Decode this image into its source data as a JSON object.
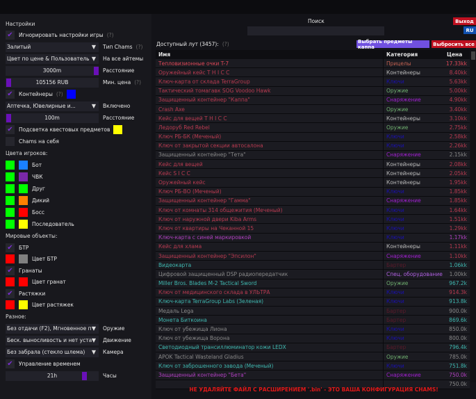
{
  "settings": {
    "title": "Настройки",
    "ignore_game_settings": "Игнорировать настройки игры",
    "help": "(?)",
    "chams_type_value": "Залитый",
    "chams_type_label": "Тип Chams",
    "all_items_value": "Цвет по цене & Пользователь",
    "all_items_label": "На все айтемы",
    "distance_value": "3000m",
    "distance_label": "Расстояние",
    "min_price_value": "105156 RUB",
    "min_price_label": "Мин. цена",
    "containers_label": "Контейнеры",
    "containers_color": "#0000ff",
    "enabled_value": "Аптечка, Ювелирные и...",
    "enabled_label": "Включено",
    "distance2_value": "100m",
    "distance2_label": "Расстояние",
    "quest_highlight_label": "Подсветка квестовых предметов",
    "quest_color": "#ffff00",
    "self_chams_label": "Chams на себя",
    "player_colors_title": "Цвета игроков:",
    "player_colors": [
      {
        "label": "Бот",
        "c1": "#00ff00",
        "c2": "#1a80ff"
      },
      {
        "label": "ЧВК",
        "c1": "#00ff00",
        "c2": "#7a28a8"
      },
      {
        "label": "Друг",
        "c1": "#00ff00",
        "c2": "#00ff00"
      },
      {
        "label": "Дикий",
        "c1": "#00ff00",
        "c2": "#ff8000"
      },
      {
        "label": "Босс",
        "c1": "#00ff00",
        "c2": "#ff0000"
      },
      {
        "label": "Последователь",
        "c1": "#00ff00",
        "c2": "#ffff00"
      }
    ],
    "world_title": "Мировые объекты:",
    "btr_label": "БТР",
    "btr_color_label": "Цвет БТР",
    "btr_c1": "#ff0000",
    "btr_c2": "#808080",
    "grenades_label": "Гранаты",
    "grenade_color_label": "Цвет гранат",
    "gr_c1": "#ff0000",
    "gr_c2": "#ff0000",
    "tripwires_label": "Растяжки",
    "tripwire_color_label": "Цвет растяжек",
    "tw_c1": "#ff0000",
    "tw_c2": "#ffff00",
    "misc_title": "Разное:",
    "weapon_value": "Без отдачи (F2), Мгновенное п",
    "weapon_label": "Оружие",
    "movement_value": "Беск. выносливость и нет уста",
    "movement_label": "Движение",
    "camera_value": "Без забрала (стекло шлема)",
    "camera_label": "Камера",
    "time_control_label": "Управление временем",
    "hours_value": "21h",
    "hours_label": "Часы"
  },
  "top": {
    "search_label": "Поиск",
    "search_value": "",
    "exit": "Выход",
    "lang": "RU",
    "loot_title": "Доступный лут (3457):",
    "help": "(?)",
    "select_kappa": "Выбрать предметы каппа",
    "drop_all": "Выбросить все"
  },
  "table": {
    "headers": [
      "Имя",
      "Категория",
      "Цена"
    ],
    "rows": [
      [
        "Тепловизионные очки T-7",
        "Прицелы",
        "17.33kk",
        "#e04858",
        "#c06050",
        "#e04858"
      ],
      [
        "Оружейный кейс T H I C C",
        "Контейнеры",
        "8.40kk",
        "#b83a50",
        "#bbbbbb",
        "#b83a50"
      ],
      [
        "Ключ-карта от склада TerraGroup",
        "Ключи",
        "5.63kk",
        "#b83a50",
        "#1a10b0",
        "#b83a50"
      ],
      [
        "Тактический томагавк SOG Voodoo Hawk",
        "Оружие",
        "5.00kk",
        "#b83a50",
        "#70b070",
        "#b83a50"
      ],
      [
        "Защищенный контейнер \"Каппа\"",
        "Снаряжение",
        "4.90kk",
        "#b83a50",
        "#a020d0",
        "#b83a50"
      ],
      [
        "Crash Axe",
        "Оружие",
        "3.40kk",
        "#b83a50",
        "#70b070",
        "#b83a50"
      ],
      [
        "Кейс для вещей T H I C C",
        "Контейнеры",
        "3.10kk",
        "#b83a50",
        "#bbbbbb",
        "#b83a50"
      ],
      [
        "Ледоруб Red Rebel",
        "Оружие",
        "2.75kk",
        "#b83a50",
        "#70b070",
        "#b83a50"
      ],
      [
        "Ключ РБ-БК (Меченый)",
        "Ключи",
        "2.58kk",
        "#b83a50",
        "#1a10b0",
        "#b83a50"
      ],
      [
        "Ключ от закрытой секции автосалона",
        "Ключи",
        "2.26kk",
        "#b83a50",
        "#1a10b0",
        "#b83a50"
      ],
      [
        "Защищенный контейнер \"Тета\"",
        "Снаряжение",
        "2.15kk",
        "#888888",
        "#a020d0",
        "#888888"
      ],
      [
        "Кейс для вещей",
        "Контейнеры",
        "2.08kk",
        "#b83a50",
        "#bbbbbb",
        "#b83a50"
      ],
      [
        "Кейс S I C C",
        "Контейнеры",
        "2.05kk",
        "#b83a50",
        "#bbbbbb",
        "#b83a50"
      ],
      [
        "Оружейный кейс",
        "Контейнеры",
        "1.95kk",
        "#b83a50",
        "#bbbbbb",
        "#b83a50"
      ],
      [
        "Ключ РБ-ВО (Меченый)",
        "Ключи",
        "1.85kk",
        "#b83a50",
        "#1a10b0",
        "#b83a50"
      ],
      [
        "Защищенный контейнер \"Гамма\"",
        "Снаряжение",
        "1.85kk",
        "#b83a50",
        "#a020d0",
        "#b83a50"
      ],
      [
        "Ключ от комнаты 314 общежития (Меченый)",
        "Ключи",
        "1.64kk",
        "#b83a50",
        "#1a10b0",
        "#b83a50"
      ],
      [
        "Ключ от наружной двери Kiba Arms",
        "Ключи",
        "1.51kk",
        "#b83a50",
        "#1a10b0",
        "#b83a50"
      ],
      [
        "Ключ от квартиры на Чеканной 15",
        "Ключи",
        "1.29kk",
        "#b83a50",
        "#1a10b0",
        "#b83a50"
      ],
      [
        "Ключ-карта с синей маркировкой",
        "Ключи",
        "1.17kk",
        "#b040c0",
        "#1a10b0",
        "#b040c0"
      ],
      [
        "Кейс для хлама",
        "Контейнеры",
        "1.11kk",
        "#b83a50",
        "#bbbbbb",
        "#b83a50"
      ],
      [
        "Защищенный контейнер \"Эпсилон\"",
        "Снаряжение",
        "1.10kk",
        "#b83a50",
        "#a020d0",
        "#b83a50"
      ],
      [
        "Видеокарта",
        "Бартер",
        "1.06kk",
        "#3fb8b0",
        "#5a1a2a",
        "#3fb8b0"
      ],
      [
        "Цифровой защищенный DSP радиопередатчик",
        "Спец. оборудование",
        "1.00kk",
        "#888888",
        "#b060e0",
        "#888888"
      ],
      [
        "Miller Bros. Blades M-2 Tactical Sword",
        "Оружие",
        "967.2k",
        "#3fb8b0",
        "#70b070",
        "#3fb8b0"
      ],
      [
        "Ключ от медицинского склада в УЛЬТРА",
        "Ключи",
        "914.3k",
        "#b83a50",
        "#1a10b0",
        "#b83a50"
      ],
      [
        "Ключ-карта TerraGroup Labs (Зеленая)",
        "Ключи",
        "913.8k",
        "#3fb8b0",
        "#1a10b0",
        "#3fb8b0"
      ],
      [
        "Медаль Lega",
        "Бартер",
        "900.0k",
        "#888888",
        "#5a1a2a",
        "#888888"
      ],
      [
        "Монета Биткоина",
        "Бартер",
        "869.6k",
        "#3fb8b0",
        "#5a1a2a",
        "#3fb8b0"
      ],
      [
        "Ключ от убежища Лиона",
        "Ключи",
        "850.0k",
        "#888888",
        "#1a10b0",
        "#888888"
      ],
      [
        "Ключ от убежища Ворона",
        "Ключи",
        "800.0k",
        "#888888",
        "#1a10b0",
        "#888888"
      ],
      [
        "Светодиодный трансиллюминатор кожи LEDX",
        "Бартер",
        "796.4k",
        "#3fb8b0",
        "#5a1a2a",
        "#3fb8b0"
      ],
      [
        "APOK Tactical Wasteland Gladius",
        "Оружие",
        "785.0k",
        "#888888",
        "#70b070",
        "#888888"
      ],
      [
        "Ключ от заброшенного завода (Меченый)",
        "Ключи",
        "751.8k",
        "#3fb8b0",
        "#1a10b0",
        "#3fb8b0"
      ],
      [
        "Защищенный контейнер \"Бета\"",
        "Снаряжение",
        "750.0k",
        "#b040c0",
        "#a020d0",
        "#b040c0"
      ],
      [
        "",
        "",
        "750.0k",
        "#888888",
        "#1a10b0",
        "#888888"
      ]
    ]
  },
  "warning": "НЕ УДАЛЯЙТЕ ФАЙЛ С РАСШИРЕНИЕМ '.bin' - ЭТО ВАША КОНФИГУРАЦИЯ CHAMS!",
  "colors": {
    "accent": "#6a10b8",
    "exit": "#c01020",
    "lang": "#1050b0",
    "kappa": "#7050e0",
    "drop": "#c01020"
  }
}
